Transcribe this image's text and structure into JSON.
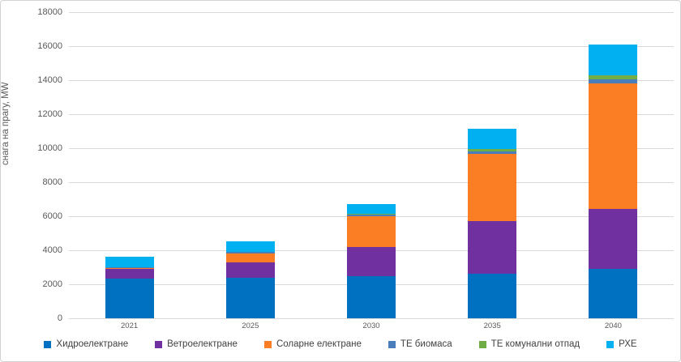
{
  "chart_data": {
    "type": "bar",
    "stacked": true,
    "title": "",
    "xlabel": "",
    "ylabel": "снага на прагу, MW",
    "ylim": [
      0,
      18000
    ],
    "ytick_step": 2000,
    "yticks": [
      0,
      2000,
      4000,
      6000,
      8000,
      10000,
      12000,
      14000,
      16000,
      18000
    ],
    "grid": true,
    "legend_position": "bottom",
    "categories": [
      "2021",
      "2025",
      "2030",
      "2035",
      "2040"
    ],
    "series": [
      {
        "name": "Хидроелектране",
        "color": "#0070C0",
        "values": [
          2350,
          2400,
          2500,
          2600,
          2900
        ]
      },
      {
        "name": "Ветроелектране",
        "color": "#7030A0",
        "values": [
          550,
          900,
          1700,
          3100,
          3550
        ]
      },
      {
        "name": "Соларне електране",
        "color": "#FB7D24",
        "values": [
          30,
          520,
          1780,
          3950,
          7350
        ]
      },
      {
        "name": "ТЕ биомаса",
        "color": "#4A7EBB",
        "values": [
          70,
          80,
          120,
          180,
          240
        ]
      },
      {
        "name": "ТЕ комунални отпад",
        "color": "#70AD47",
        "values": [
          0,
          20,
          60,
          130,
          240
        ]
      },
      {
        "name": "РХЕ",
        "color": "#00B0F0",
        "values": [
          630,
          620,
          550,
          1170,
          1830
        ]
      }
    ],
    "totals": [
      3630,
      4540,
      6710,
      11130,
      16110
    ]
  }
}
